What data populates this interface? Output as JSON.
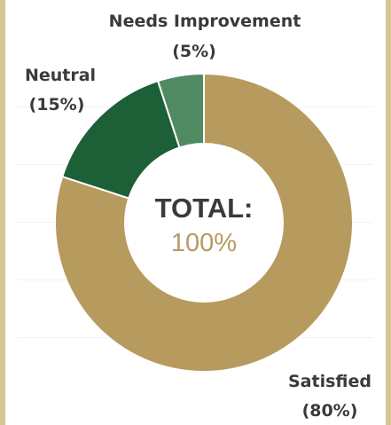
{
  "chart_data": {
    "type": "pie",
    "variant": "donut",
    "slices": [
      {
        "label": "Satisfied",
        "value": 80,
        "value_label": "(80%)",
        "color": "#b79a5e"
      },
      {
        "label": "Neutral",
        "value": 15,
        "value_label": "(15%)",
        "color": "#1d5f36"
      },
      {
        "label": "Needs Improvement",
        "value": 5,
        "value_label": "(5%)",
        "color": "#4f8a63"
      }
    ],
    "center": {
      "title": "TOTAL:",
      "value": "100%",
      "title_color": "#3a3a3a",
      "value_color": "#b79a5e"
    },
    "legend": "none"
  }
}
